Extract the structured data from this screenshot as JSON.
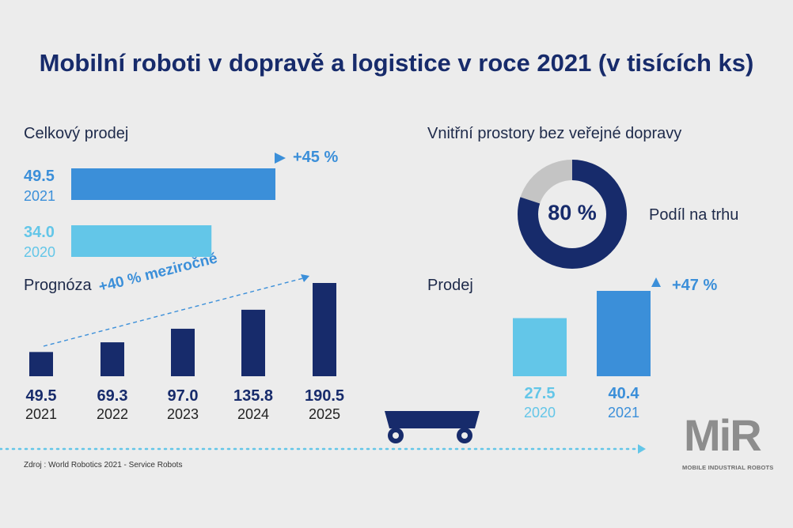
{
  "title": "Mobilní roboti v dopravě a logistice v roce 2021 (v tisících ks)",
  "colors": {
    "navy": "#172b6b",
    "blue": "#3b8fd9",
    "light": "#63c6e8",
    "gray": "#c4c4c4",
    "bg": "#ececec"
  },
  "chart_data": [
    {
      "type": "bar",
      "title": "Celkový prodej",
      "orientation": "horizontal",
      "categories": [
        "2021",
        "2020"
      ],
      "values": [
        49.5,
        34.0
      ],
      "labels": [
        "49.5",
        "34.0"
      ],
      "annotation": "+45 %"
    },
    {
      "type": "bar",
      "title": "Prognóza",
      "categories": [
        "2021",
        "2022",
        "2023",
        "2024",
        "2025"
      ],
      "values": [
        49.5,
        69.3,
        97.0,
        135.8,
        190.5
      ],
      "labels": [
        "49.5",
        "69.3",
        "97.0",
        "135.8",
        "190.5"
      ],
      "annotation": "+40 % meziročně"
    },
    {
      "type": "pie",
      "title": "Vnitřní prostory bez veřejné dopravy",
      "values": [
        80,
        20
      ],
      "center_label": "80 %",
      "side_label": "Podíl na trhu"
    },
    {
      "type": "bar",
      "title": "Prodej",
      "categories": [
        "2020",
        "2021"
      ],
      "values": [
        27.5,
        40.4
      ],
      "labels": [
        "27.5",
        "40.4"
      ],
      "annotation": "+47 %"
    }
  ],
  "source": "Zdroj : World Robotics 2021 - Service Robots",
  "logo": {
    "text": "MiR",
    "subtitle": "MOBILE INDUSTRIAL ROBOTS"
  }
}
